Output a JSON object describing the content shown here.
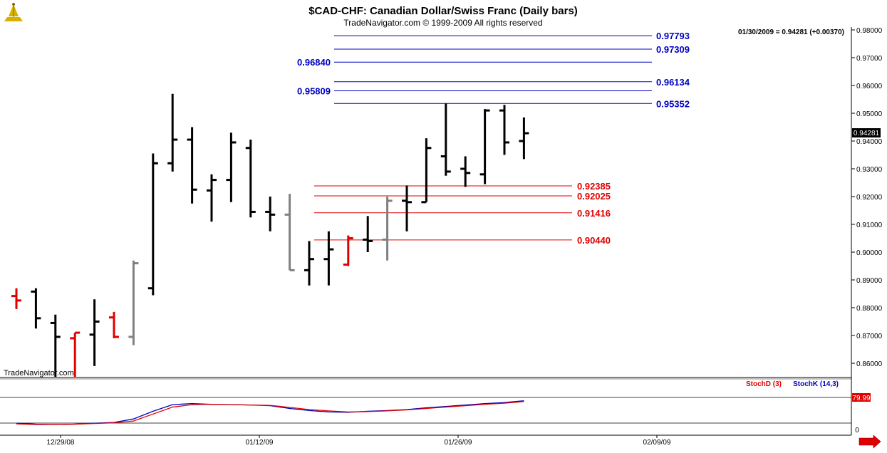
{
  "title": "$CAD-CHF:  Canadian Dollar/Swiss Franc  (Daily bars)",
  "copyright": "TradeNavigator.com © 1999-2009 All rights reserved",
  "watermark": "TradeNavigator.com",
  "last_quote": "01/30/2009 = 0.94281 (+0.00370)",
  "last_price_tag": "0.94281",
  "colors": {
    "background": "#ffffff",
    "bar_up": "#000000",
    "bar_down": "#e00000",
    "bar_neutral": "#808080",
    "ext_lines": "#0000c0",
    "ret_lines": "#e00000",
    "stoch_d": "#e00000",
    "stoch_k": "#0000c0",
    "logo": "#d8b000",
    "arrow": "#e00000"
  },
  "icons": {
    "logo": "trade-navigator-logo-icon",
    "arrow": "scroll-right-arrow-icon"
  },
  "chart_data": [
    {
      "type": "ohlc",
      "title": "$CAD-CHF:  Canadian Dollar/Swiss Franc  (Daily bars)",
      "ylim": [
        0.855,
        0.982
      ],
      "y_ticks": [
        "0.98000",
        "0.97000",
        "0.96000",
        "0.95000",
        "0.94000",
        "0.93000",
        "0.92000",
        "0.91000",
        "0.90000",
        "0.89000",
        "0.88000",
        "0.87000",
        "0.86000"
      ],
      "x_ticks": [
        "12/29/08",
        "01/12/09",
        "01/26/09",
        "02/09/09"
      ],
      "bars": [
        {
          "o": 0.8842,
          "h": 0.887,
          "l": 0.8795,
          "c": 0.8826,
          "color": "red"
        },
        {
          "o": 0.8858,
          "h": 0.887,
          "l": 0.8725,
          "c": 0.8762,
          "color": "black"
        },
        {
          "o": 0.8745,
          "h": 0.8775,
          "l": 0.8545,
          "c": 0.8695,
          "color": "black"
        },
        {
          "o": 0.869,
          "h": 0.871,
          "l": 0.8545,
          "c": 0.871,
          "color": "red"
        },
        {
          "o": 0.8703,
          "h": 0.883,
          "l": 0.859,
          "c": 0.875,
          "color": "black"
        },
        {
          "o": 0.8765,
          "h": 0.8785,
          "l": 0.869,
          "c": 0.8695,
          "color": "red"
        },
        {
          "o": 0.8695,
          "h": 0.897,
          "l": 0.8665,
          "c": 0.896,
          "color": "gray"
        },
        {
          "o": 0.887,
          "h": 0.9355,
          "l": 0.8845,
          "c": 0.932,
          "color": "black"
        },
        {
          "o": 0.932,
          "h": 0.957,
          "l": 0.929,
          "c": 0.9405,
          "color": "black"
        },
        {
          "o": 0.9405,
          "h": 0.945,
          "l": 0.9175,
          "c": 0.9225,
          "color": "black"
        },
        {
          "o": 0.9222,
          "h": 0.928,
          "l": 0.911,
          "c": 0.926,
          "color": "black"
        },
        {
          "o": 0.926,
          "h": 0.943,
          "l": 0.918,
          "c": 0.9395,
          "color": "black"
        },
        {
          "o": 0.9375,
          "h": 0.9405,
          "l": 0.9125,
          "c": 0.9145,
          "color": "black"
        },
        {
          "o": 0.9145,
          "h": 0.92,
          "l": 0.9075,
          "c": 0.9135,
          "color": "black"
        },
        {
          "o": 0.9135,
          "h": 0.921,
          "l": 0.8935,
          "c": 0.8935,
          "color": "gray"
        },
        {
          "o": 0.8935,
          "h": 0.904,
          "l": 0.888,
          "c": 0.8975,
          "color": "black"
        },
        {
          "o": 0.8975,
          "h": 0.9075,
          "l": 0.888,
          "c": 0.901,
          "color": "black"
        },
        {
          "o": 0.8955,
          "h": 0.906,
          "l": 0.895,
          "c": 0.905,
          "color": "red"
        },
        {
          "o": 0.9045,
          "h": 0.913,
          "l": 0.9,
          "c": 0.904,
          "color": "black"
        },
        {
          "o": 0.9045,
          "h": 0.92,
          "l": 0.897,
          "c": 0.9185,
          "color": "gray"
        },
        {
          "o": 0.9185,
          "h": 0.924,
          "l": 0.9075,
          "c": 0.918,
          "color": "black"
        },
        {
          "o": 0.918,
          "h": 0.941,
          "l": 0.918,
          "c": 0.9375,
          "color": "black"
        },
        {
          "o": 0.9345,
          "h": 0.9535,
          "l": 0.9275,
          "c": 0.929,
          "color": "black"
        },
        {
          "o": 0.93,
          "h": 0.9345,
          "l": 0.9235,
          "c": 0.9285,
          "color": "black"
        },
        {
          "o": 0.928,
          "h": 0.9515,
          "l": 0.9245,
          "c": 0.951,
          "color": "black"
        },
        {
          "o": 0.951,
          "h": 0.953,
          "l": 0.935,
          "c": 0.9395,
          "color": "black"
        },
        {
          "o": 0.94,
          "h": 0.9485,
          "l": 0.9335,
          "c": 0.94281,
          "color": "black"
        }
      ],
      "extensions": [
        {
          "value": "0.97793",
          "side": "right"
        },
        {
          "value": "0.97309",
          "side": "right"
        },
        {
          "value": "0.96840",
          "side": "left"
        },
        {
          "value": "0.96134",
          "side": "right"
        },
        {
          "value": "0.95809",
          "side": "left"
        },
        {
          "value": "0.95352",
          "side": "right"
        }
      ],
      "retracements": [
        "0.92385",
        "0.92025",
        "0.91416",
        "0.90440"
      ]
    },
    {
      "type": "line",
      "legend": [
        "StochD (3)",
        "StochK (14,3)"
      ],
      "level_label": "79.99",
      "zero_label": "0",
      "ylim": [
        0,
        100
      ],
      "series": [
        {
          "name": "StochK (14,3)",
          "values": [
            8,
            5,
            4,
            5,
            8,
            10,
            20,
            42,
            61,
            64,
            62,
            61,
            60,
            58,
            50,
            44,
            40,
            39,
            42,
            44,
            47,
            52,
            56,
            60,
            64,
            67,
            72
          ]
        },
        {
          "name": "StochD (3)",
          "values": [
            6,
            4,
            4,
            5,
            7,
            9,
            14,
            34,
            54,
            61,
            62,
            61,
            60,
            59,
            53,
            47,
            43,
            40,
            41,
            43,
            46,
            50,
            54,
            58,
            62,
            65,
            70
          ]
        }
      ]
    }
  ]
}
